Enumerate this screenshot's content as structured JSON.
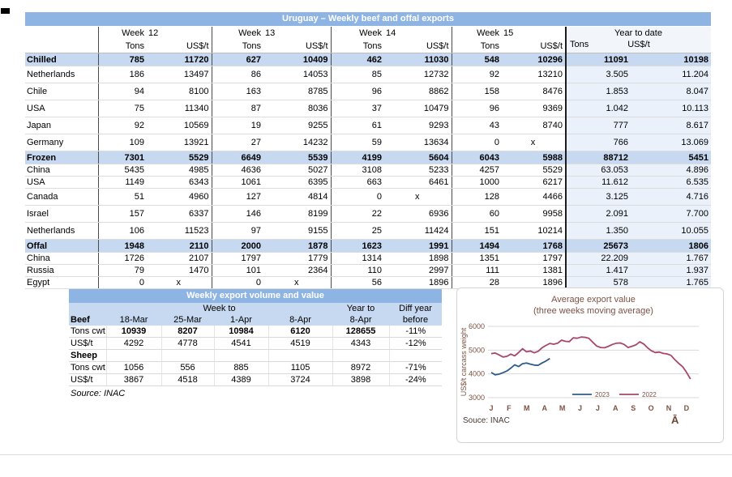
{
  "colors": {
    "bar_blue": "#8EB4E3",
    "section_blue": "#C6D9F1",
    "ytd_bg": "#EAF1FA",
    "line_2023": "#2E5C8A",
    "line_2022": "#A8466C",
    "chart_text": "#7D5243"
  },
  "table1": {
    "title": "Uruguay – Weekly beef and offal exports",
    "week_label": "Week",
    "weeks": [
      "12",
      "13",
      "14",
      "15"
    ],
    "ytd_label": "Year to date",
    "tons_label": "Tons",
    "usd_label": "US$/t",
    "rows": [
      {
        "label": "Chilled",
        "style": "section",
        "values": [
          "785",
          "11720",
          "627",
          "10409",
          "462",
          "11030",
          "548",
          "10296",
          "11091",
          "10198"
        ]
      },
      {
        "label": "Netherlands",
        "style": "tall",
        "values": [
          "186",
          "13497",
          "86",
          "14053",
          "85",
          "12732",
          "92",
          "13210",
          "3.505",
          "11.204"
        ]
      },
      {
        "label": "Chile",
        "style": "tall",
        "values": [
          "94",
          "8100",
          "163",
          "8785",
          "96",
          "8862",
          "158",
          "8476",
          "1.853",
          "8.047"
        ]
      },
      {
        "label": "USA",
        "style": "tall",
        "values": [
          "75",
          "11340",
          "87",
          "8036",
          "37",
          "10479",
          "96",
          "9369",
          "1.042",
          "10.113"
        ]
      },
      {
        "label": "Japan",
        "style": "tall",
        "values": [
          "92",
          "10569",
          "19",
          "9255",
          "61",
          "9293",
          "43",
          "8740",
          "777",
          "8.617"
        ]
      },
      {
        "label": "Germany",
        "style": "tall",
        "values": [
          "109",
          "13921",
          "27",
          "14232",
          "59",
          "13634",
          "0",
          "x",
          "766",
          "13.069"
        ]
      },
      {
        "label": "Frozen",
        "style": "section",
        "values": [
          "7301",
          "5529",
          "6649",
          "5539",
          "4199",
          "5604",
          "6043",
          "5988",
          "88712",
          "5451"
        ]
      },
      {
        "label": "China",
        "style": "short",
        "values": [
          "5435",
          "4985",
          "4636",
          "5027",
          "3108",
          "5233",
          "4257",
          "5529",
          "63.053",
          "4.896"
        ]
      },
      {
        "label": "USA",
        "style": "short",
        "values": [
          "1149",
          "6343",
          "1061",
          "6395",
          "663",
          "6461",
          "1000",
          "6217",
          "11.612",
          "6.535"
        ]
      },
      {
        "label": "Canada",
        "style": "tall",
        "values": [
          "51",
          "4960",
          "127",
          "4814",
          "0",
          "x",
          "128",
          "4466",
          "3.125",
          "4.716"
        ]
      },
      {
        "label": "Israel",
        "style": "tall",
        "values": [
          "157",
          "6337",
          "146",
          "8199",
          "22",
          "6936",
          "60",
          "9958",
          "2.091",
          "7.700"
        ]
      },
      {
        "label": "Netherlands",
        "style": "tall",
        "values": [
          "106",
          "11523",
          "97",
          "9155",
          "25",
          "11424",
          "151",
          "10214",
          "1.350",
          "10.055"
        ]
      },
      {
        "label": "Offal",
        "style": "section",
        "values": [
          "1948",
          "2110",
          "2000",
          "1878",
          "1623",
          "1991",
          "1494",
          "1768",
          "25673",
          "1806"
        ]
      },
      {
        "label": "China",
        "style": "short",
        "values": [
          "1726",
          "2107",
          "1797",
          "1779",
          "1314",
          "1898",
          "1351",
          "1797",
          "22.209",
          "1.767"
        ]
      },
      {
        "label": "Russia",
        "style": "short",
        "values": [
          "79",
          "1470",
          "101",
          "2364",
          "110",
          "2997",
          "111",
          "1381",
          "1.417",
          "1.937"
        ]
      },
      {
        "label": "Egypt",
        "style": "short",
        "values": [
          "0",
          "x",
          "0",
          "x",
          "56",
          "1896",
          "28",
          "1896",
          "578",
          "1.765"
        ]
      }
    ]
  },
  "table2": {
    "title": "Weekly export volume and value",
    "week_to_label": "Week to",
    "year_to_label": "Year to",
    "diff_label_top": "Diff year",
    "diff_label_bottom": "before",
    "header": [
      "Beef",
      "18-Mar",
      "25-Mar",
      "1-Apr",
      "8-Apr",
      "8-Apr"
    ],
    "rows": [
      {
        "label": "Tons cwt",
        "bold": true,
        "values": [
          "10939",
          "8207",
          "10984",
          "6120",
          "128655",
          "-11%"
        ]
      },
      {
        "label": "US$/t",
        "bold": false,
        "values": [
          "4292",
          "4778",
          "4541",
          "4519",
          "4343",
          "-12%"
        ]
      },
      {
        "label": "Sheep",
        "section": true,
        "values": [
          "",
          "",
          "",
          "",
          "",
          ""
        ]
      },
      {
        "label": "Tons cwt",
        "bold": false,
        "values": [
          "1056",
          "556",
          "885",
          "1105",
          "8972",
          "-71%"
        ]
      },
      {
        "label": "US$/t",
        "bold": false,
        "values": [
          "3867",
          "4518",
          "4389",
          "3724",
          "3898",
          "-24%"
        ]
      }
    ],
    "source": "Source: INAC"
  },
  "chart_data": {
    "type": "line",
    "title": "Average export value",
    "subtitle": "(three weeks moving average)",
    "ylabel": "US$/t carcass weight",
    "yticks": [
      6000,
      5000,
      4000,
      3000
    ],
    "ylim": [
      3000,
      6000
    ],
    "x_tick_labels": [
      "J",
      "F",
      "M",
      "A",
      "M",
      "J",
      "J",
      "A",
      "S",
      "O",
      "N",
      "D"
    ],
    "grid": true,
    "legend_position": "bottom-inside",
    "source": "Souce: INAC",
    "corner_glyph": "Ā",
    "series": [
      {
        "name": "2023",
        "color": "#2E5C8A",
        "values": [
          4060,
          3960,
          3990,
          4050,
          4120,
          4240,
          4380,
          4310,
          4430,
          4460,
          4410,
          4370,
          4360,
          4460,
          4540,
          4650
        ]
      },
      {
        "name": "2022",
        "color": "#A8466C",
        "values": [
          4850,
          4880,
          4800,
          4710,
          4740,
          4830,
          4760,
          4900,
          5060,
          4930,
          4960,
          4890,
          4950,
          5100,
          5200,
          5280,
          5250,
          5290,
          5420,
          5370,
          5360,
          5520,
          5500,
          5550,
          5540,
          5500,
          5330,
          5170,
          5110,
          5100,
          5160,
          5240,
          5290,
          5300,
          5240,
          5110,
          5160,
          5220,
          5350,
          5260,
          5100,
          4970,
          4900,
          4920,
          4860,
          4840,
          4780,
          4600,
          4440,
          4300,
          4060,
          3780
        ]
      }
    ]
  }
}
